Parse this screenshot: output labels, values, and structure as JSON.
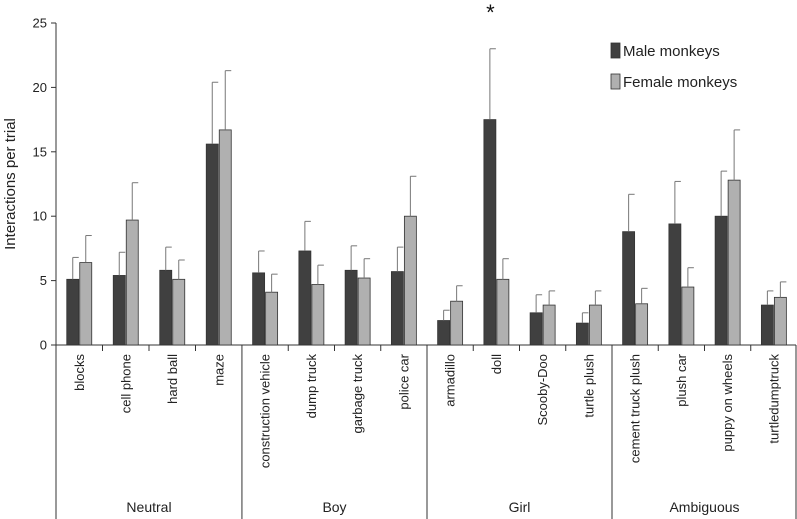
{
  "chart_data": {
    "type": "bar",
    "title": "",
    "xlabel": "",
    "ylabel": "Interactions per trial",
    "ylim": [
      0,
      25
    ],
    "yticks": [
      0,
      5,
      10,
      15,
      20,
      25
    ],
    "grid": false,
    "legend_position": "top-right",
    "categories": [
      "blocks",
      "cell phone",
      "hard ball",
      "maze",
      "construction vehicle",
      "dump truck",
      "garbage truck",
      "police car",
      "armadillo",
      "doll",
      "Scooby-Doo",
      "turtle plush",
      "cement truck plush",
      "plush car",
      "puppy on wheels",
      "turtledumptruck"
    ],
    "groups": [
      {
        "name": "Neutral",
        "count": 4
      },
      {
        "name": "Boy",
        "count": 4
      },
      {
        "name": "Girl",
        "count": 4
      },
      {
        "name": "Ambiguous",
        "count": 4
      }
    ],
    "series": [
      {
        "name": "Male monkeys",
        "color": "#404040",
        "values": [
          5.1,
          5.4,
          5.8,
          15.6,
          5.6,
          7.3,
          5.8,
          5.7,
          1.9,
          17.5,
          2.5,
          1.7,
          8.8,
          9.4,
          10.0,
          3.1
        ],
        "errors": [
          1.7,
          1.8,
          1.8,
          4.8,
          1.7,
          2.3,
          1.9,
          1.9,
          0.8,
          5.5,
          1.4,
          0.8,
          2.9,
          3.3,
          3.5,
          1.1
        ]
      },
      {
        "name": "Female monkeys",
        "color": "#b0b0b0",
        "values": [
          6.4,
          9.7,
          5.1,
          16.7,
          4.1,
          4.7,
          5.2,
          10.0,
          3.4,
          5.1,
          3.1,
          3.1,
          3.2,
          4.5,
          12.8,
          3.7
        ],
        "errors": [
          2.1,
          2.9,
          1.5,
          4.6,
          1.4,
          1.5,
          1.5,
          3.1,
          1.2,
          1.6,
          1.1,
          1.1,
          1.2,
          1.5,
          3.9,
          1.2
        ]
      }
    ],
    "annotations": [
      {
        "text": "*",
        "category": "doll"
      }
    ]
  }
}
